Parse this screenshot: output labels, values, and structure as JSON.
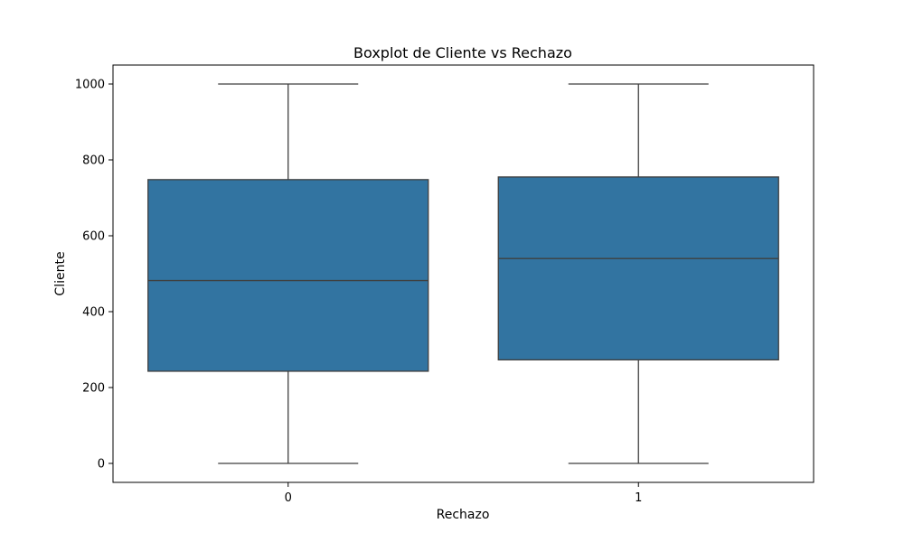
{
  "chart_data": {
    "type": "boxplot",
    "title": "Boxplot de Cliente vs Rechazo",
    "xlabel": "Rechazo",
    "ylabel": "Cliente",
    "categories": [
      "0",
      "1"
    ],
    "boxes": [
      {
        "category": "0",
        "whisker_low": 0,
        "q1": 243,
        "median": 482,
        "q3": 748,
        "whisker_high": 1000
      },
      {
        "category": "1",
        "whisker_low": 0,
        "q1": 273,
        "median": 540,
        "q3": 755,
        "whisker_high": 1000
      }
    ],
    "ylim": [
      -50,
      1050
    ],
    "yticks": [
      0,
      200,
      400,
      600,
      800,
      1000
    ],
    "grid": false,
    "colors": {
      "box_fill": "#3274a1",
      "line": "#3f3f3f"
    }
  }
}
